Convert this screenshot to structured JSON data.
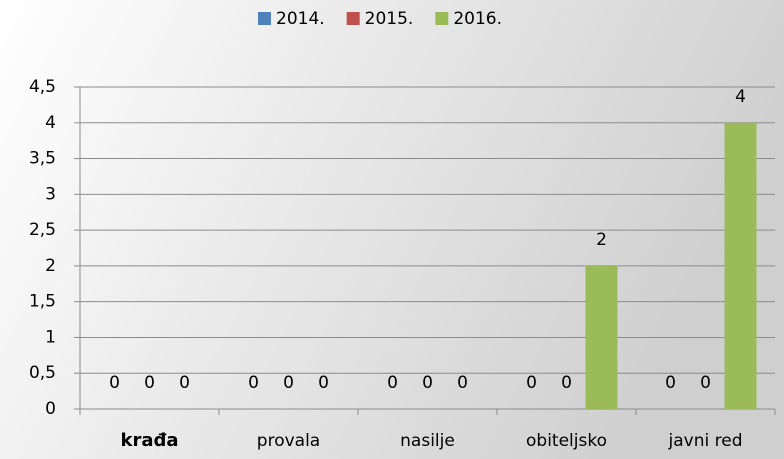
{
  "chart_data": {
    "type": "bar",
    "categories": [
      "krađa",
      "provala",
      "nasilje",
      "obiteljsko",
      "javni red"
    ],
    "series": [
      {
        "name": "2014.",
        "color": "#4f81bd",
        "values": [
          0,
          0,
          0,
          0,
          0
        ]
      },
      {
        "name": "2015.",
        "color": "#c0504d",
        "values": [
          0,
          0,
          0,
          0,
          0
        ]
      },
      {
        "name": "2016.",
        "color": "#9bbb59",
        "values": [
          0,
          0,
          0,
          2,
          4
        ]
      }
    ],
    "ylim": [
      0,
      4.5
    ],
    "yticks": [
      0,
      {
        "value": 0.5,
        "label": "0,5"
      },
      1,
      {
        "value": 1.5,
        "label": "1,5"
      },
      2,
      {
        "value": 2.5,
        "label": "2,5"
      },
      3,
      {
        "value": 3.5,
        "label": "3,5"
      },
      4,
      {
        "value": 4.5,
        "label": "4,5"
      }
    ],
    "grid": true,
    "legend": "top"
  }
}
